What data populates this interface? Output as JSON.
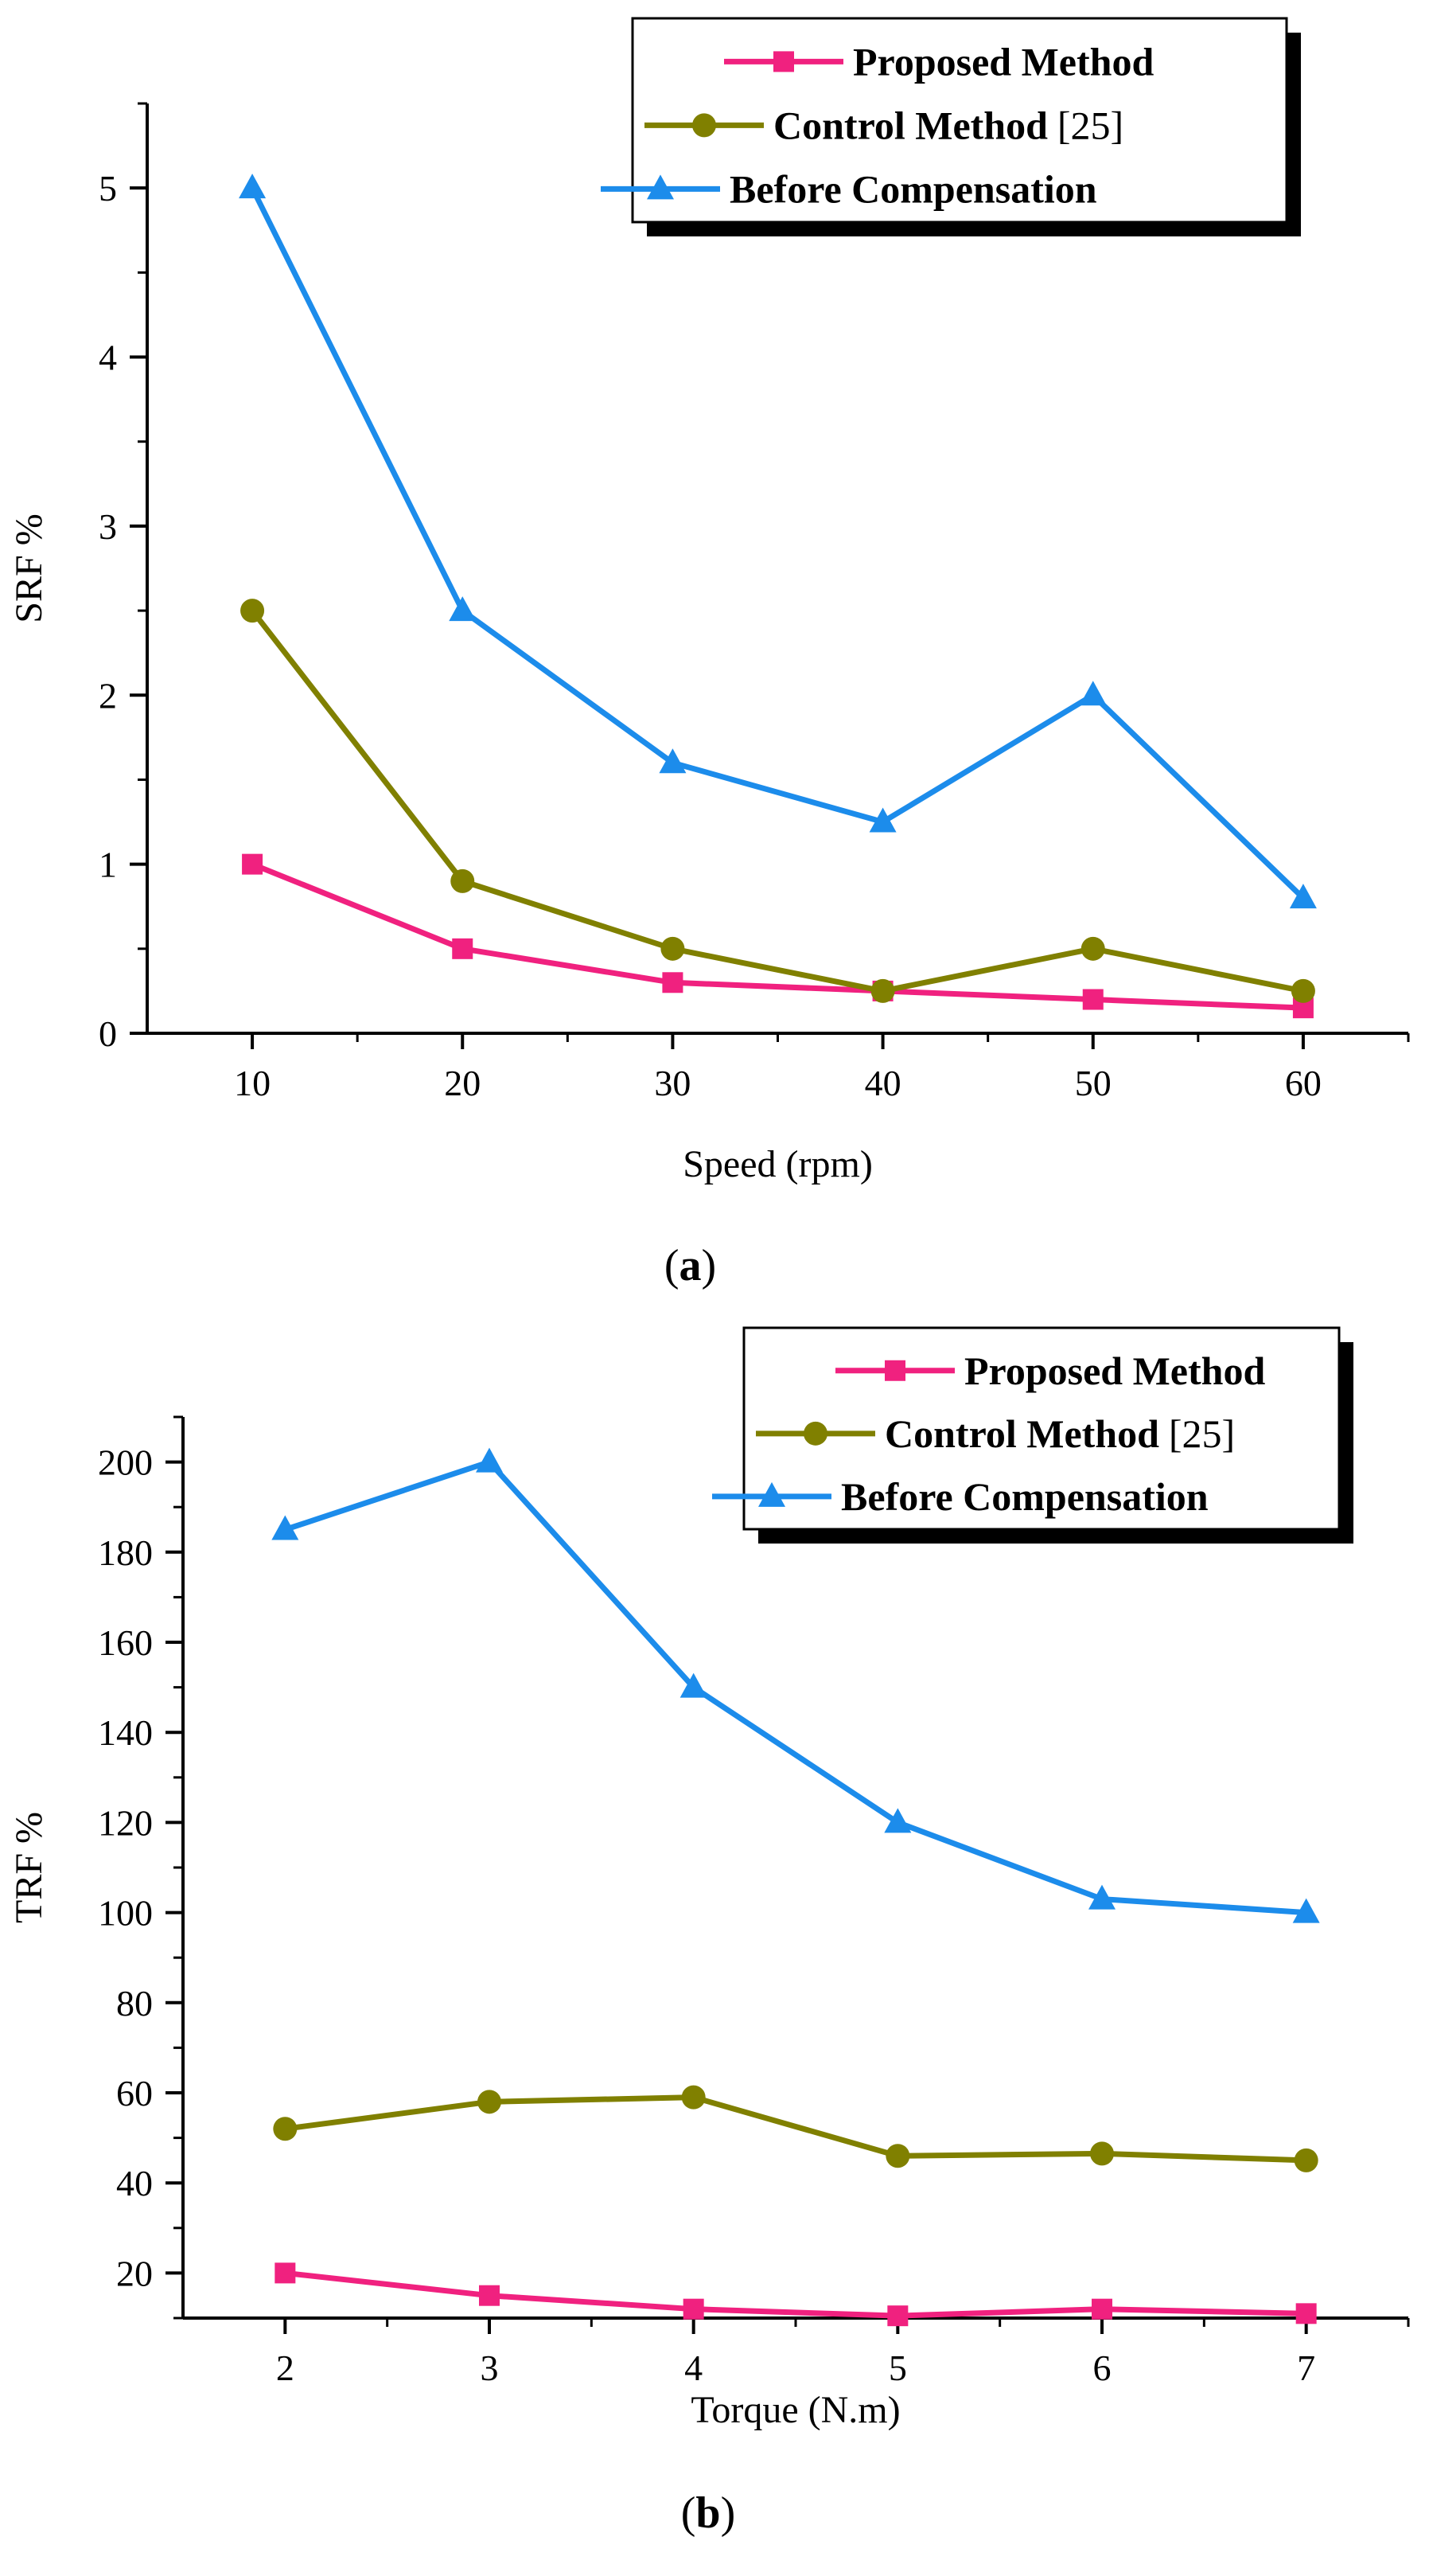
{
  "chart_data": [
    {
      "type": "line",
      "caption_letter": "a",
      "xlabel": "Speed (rpm)",
      "ylabel": "SRF %",
      "x": [
        10,
        20,
        30,
        40,
        50,
        60
      ],
      "xlim": [
        5,
        65
      ],
      "ylim": [
        0,
        5.5
      ],
      "xticks": [
        10,
        20,
        30,
        40,
        50,
        60
      ],
      "yticks": [
        0,
        1,
        2,
        3,
        4,
        5
      ],
      "legend_position": "top-right",
      "grid": false,
      "series": [
        {
          "name": "Proposed Method",
          "ref": "",
          "marker": "square",
          "color": "#f0217f",
          "values": [
            1.0,
            0.5,
            0.3,
            0.25,
            0.2,
            0.15
          ]
        },
        {
          "name": "Control Method",
          "ref": "[25]",
          "marker": "circle",
          "color": "#808000",
          "values": [
            2.5,
            0.9,
            0.5,
            0.25,
            0.5,
            0.25
          ]
        },
        {
          "name": "Before Compensation",
          "ref": "",
          "marker": "triangle",
          "color": "#1c8ceb",
          "values": [
            5.0,
            2.5,
            1.6,
            1.25,
            2.0,
            0.8
          ]
        }
      ]
    },
    {
      "type": "line",
      "caption_letter": "b",
      "xlabel": "Torque (N.m)",
      "ylabel": "TRF %",
      "x": [
        2,
        3,
        4,
        5,
        6,
        7
      ],
      "xlim": [
        1.5,
        7.5
      ],
      "ylim": [
        10,
        210
      ],
      "xticks": [
        2,
        3,
        4,
        5,
        6,
        7
      ],
      "yticks": [
        20,
        40,
        60,
        80,
        100,
        120,
        140,
        160,
        180,
        200
      ],
      "legend_position": "top-right",
      "grid": false,
      "series": [
        {
          "name": "Proposed Method",
          "ref": "",
          "marker": "square",
          "color": "#f0217f",
          "values": [
            20,
            15,
            12,
            10.5,
            12,
            11
          ]
        },
        {
          "name": "Control Method",
          "ref": "[25]",
          "marker": "circle",
          "color": "#808000",
          "values": [
            52,
            58,
            59,
            46,
            46.5,
            45
          ]
        },
        {
          "name": "Before Compensation",
          "ref": "",
          "marker": "triangle",
          "color": "#1c8ceb",
          "values": [
            185,
            200,
            150,
            120,
            103,
            100
          ]
        }
      ]
    }
  ]
}
